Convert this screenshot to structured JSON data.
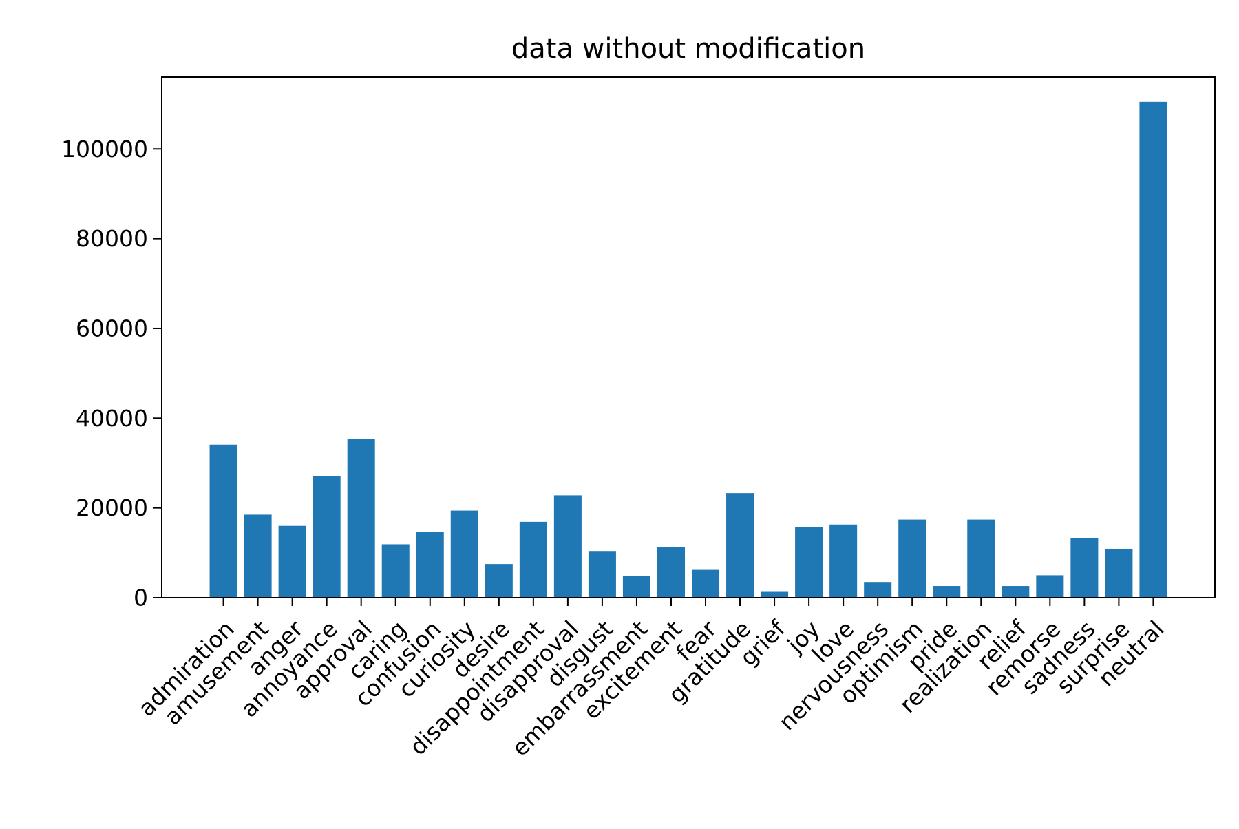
{
  "chart_data": {
    "type": "bar",
    "title": "data without modification",
    "xlabel": "",
    "ylabel": "",
    "categories": [
      "admiration",
      "amusement",
      "anger",
      "annoyance",
      "approval",
      "caring",
      "confusion",
      "curiosity",
      "desire",
      "disappointment",
      "disapproval",
      "disgust",
      "embarrassment",
      "excitement",
      "fear",
      "gratitude",
      "grief",
      "joy",
      "love",
      "nervousness",
      "optimism",
      "pride",
      "realization",
      "relief",
      "remorse",
      "sadness",
      "surprise",
      "neutral"
    ],
    "values": [
      34100,
      18500,
      16000,
      27100,
      35300,
      11900,
      14600,
      19400,
      7500,
      16900,
      22800,
      10400,
      4800,
      11200,
      6200,
      23300,
      1300,
      15800,
      16300,
      3500,
      17400,
      2600,
      17400,
      2600,
      5000,
      13300,
      10900,
      110500
    ],
    "yticks": [
      0,
      20000,
      40000,
      60000,
      80000,
      100000
    ],
    "ylim": [
      0,
      116000
    ],
    "grid": false,
    "legend": "none",
    "bar_color": "#1f77b4"
  }
}
